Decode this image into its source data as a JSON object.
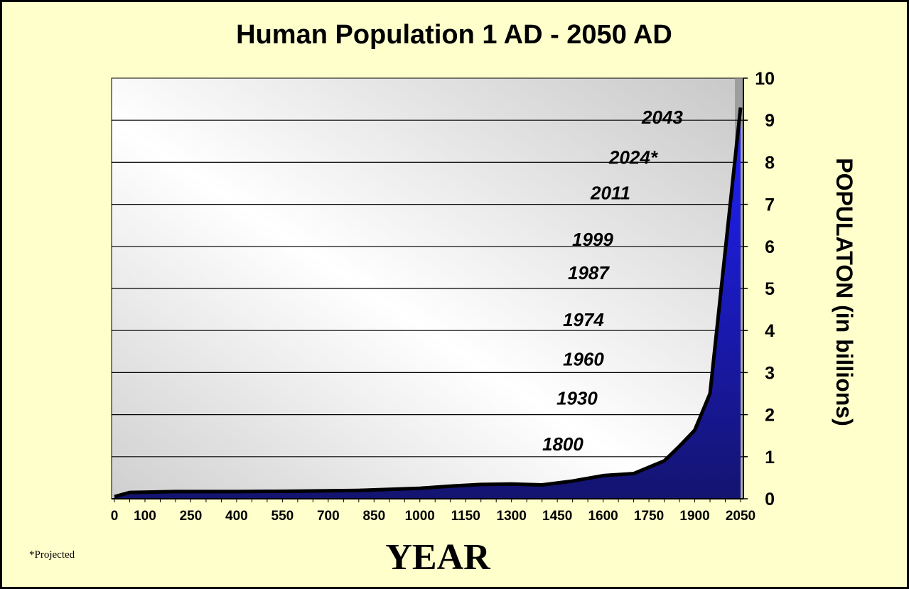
{
  "chart_data": {
    "type": "area",
    "title": "Human Population 1 AD - 2050 AD",
    "xlabel": "YEAR",
    "ylabel": "POPULATON (in billions)",
    "footnote": "*Projected",
    "xlim": [
      0,
      2050
    ],
    "ylim": [
      0,
      10
    ],
    "x_ticks": [
      0,
      100,
      250,
      400,
      550,
      700,
      850,
      1000,
      1150,
      1300,
      1450,
      1600,
      1750,
      1900,
      2050
    ],
    "y_ticks": [
      0,
      1,
      2,
      3,
      4,
      5,
      6,
      7,
      8,
      9,
      10
    ],
    "grid": true,
    "colors": {
      "fill": "#1a1ae0",
      "line": "#000000",
      "background": "#ffffcc"
    },
    "series": [
      {
        "x": [
          0,
          50,
          200,
          400,
          600,
          800,
          1000,
          1100,
          1200,
          1300,
          1400,
          1500,
          1600,
          1700,
          1800,
          1850,
          1900,
          1950,
          2050
        ],
        "values": [
          0.05,
          0.15,
          0.17,
          0.17,
          0.18,
          0.2,
          0.25,
          0.3,
          0.34,
          0.35,
          0.33,
          0.42,
          0.55,
          0.6,
          0.9,
          1.25,
          1.63,
          2.5,
          9.3
        ]
      }
    ],
    "annotations": [
      {
        "text": "1800",
        "y": 1
      },
      {
        "text": "1930",
        "y": 2
      },
      {
        "text": "1960",
        "y": 3
      },
      {
        "text": "1974",
        "y": 4
      },
      {
        "text": "1987",
        "y": 5
      },
      {
        "text": "1999",
        "y": 6
      },
      {
        "text": "2011",
        "y": 7
      },
      {
        "text": "2024*",
        "y": 8
      },
      {
        "text": "2043",
        "y": 9
      }
    ]
  }
}
